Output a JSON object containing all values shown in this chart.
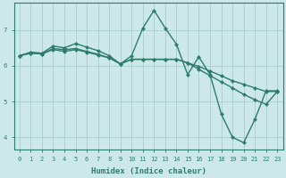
{
  "xlabel": "Humidex (Indice chaleur)",
  "bg_color": "#cce8e8",
  "line_color": "#2e7d6b",
  "grid_color": "#aacccc",
  "xlim": [
    -0.5,
    23.5
  ],
  "ylim": [
    3.65,
    7.75
  ],
  "yticks": [
    4,
    5,
    6,
    7
  ],
  "xticks": [
    0,
    1,
    2,
    3,
    4,
    5,
    6,
    7,
    8,
    9,
    10,
    11,
    12,
    13,
    14,
    15,
    16,
    17,
    18,
    19,
    20,
    21,
    22,
    23
  ],
  "series1_x": [
    0,
    1,
    2,
    3,
    4,
    5,
    6,
    7,
    8,
    9,
    10,
    11,
    12,
    13,
    14,
    15,
    16,
    17,
    18,
    19,
    20,
    21,
    22,
    23
  ],
  "series1_y": [
    6.28,
    6.38,
    6.35,
    6.55,
    6.5,
    6.62,
    6.52,
    6.42,
    6.28,
    6.05,
    6.28,
    7.05,
    7.55,
    7.05,
    6.6,
    5.75,
    6.25,
    5.75,
    4.65,
    4.0,
    3.85,
    4.5,
    5.3,
    5.3
  ],
  "series2_x": [
    0,
    1,
    2,
    3,
    4,
    5,
    6,
    7,
    8,
    9,
    10,
    11,
    12,
    13,
    14,
    15,
    16,
    17,
    18,
    19,
    20,
    21,
    22,
    23
  ],
  "series2_y": [
    6.28,
    6.35,
    6.33,
    6.48,
    6.45,
    6.48,
    6.4,
    6.32,
    6.22,
    6.05,
    6.18,
    6.18,
    6.18,
    6.18,
    6.18,
    6.08,
    5.98,
    5.85,
    5.72,
    5.58,
    5.48,
    5.38,
    5.28,
    5.28
  ],
  "series3_x": [
    0,
    1,
    2,
    3,
    4,
    5,
    6,
    7,
    8,
    9,
    10,
    11,
    12,
    13,
    14,
    15,
    16,
    17,
    18,
    19,
    20,
    21,
    22,
    23
  ],
  "series3_y": [
    6.28,
    6.35,
    6.33,
    6.45,
    6.4,
    6.45,
    6.38,
    6.3,
    6.22,
    6.05,
    6.18,
    6.18,
    6.18,
    6.18,
    6.18,
    6.08,
    5.9,
    5.72,
    5.55,
    5.38,
    5.2,
    5.05,
    4.92,
    5.28
  ],
  "markersize": 2.5,
  "linewidth": 1.0,
  "tick_fontsize": 5.0,
  "xlabel_fontsize": 6.5
}
